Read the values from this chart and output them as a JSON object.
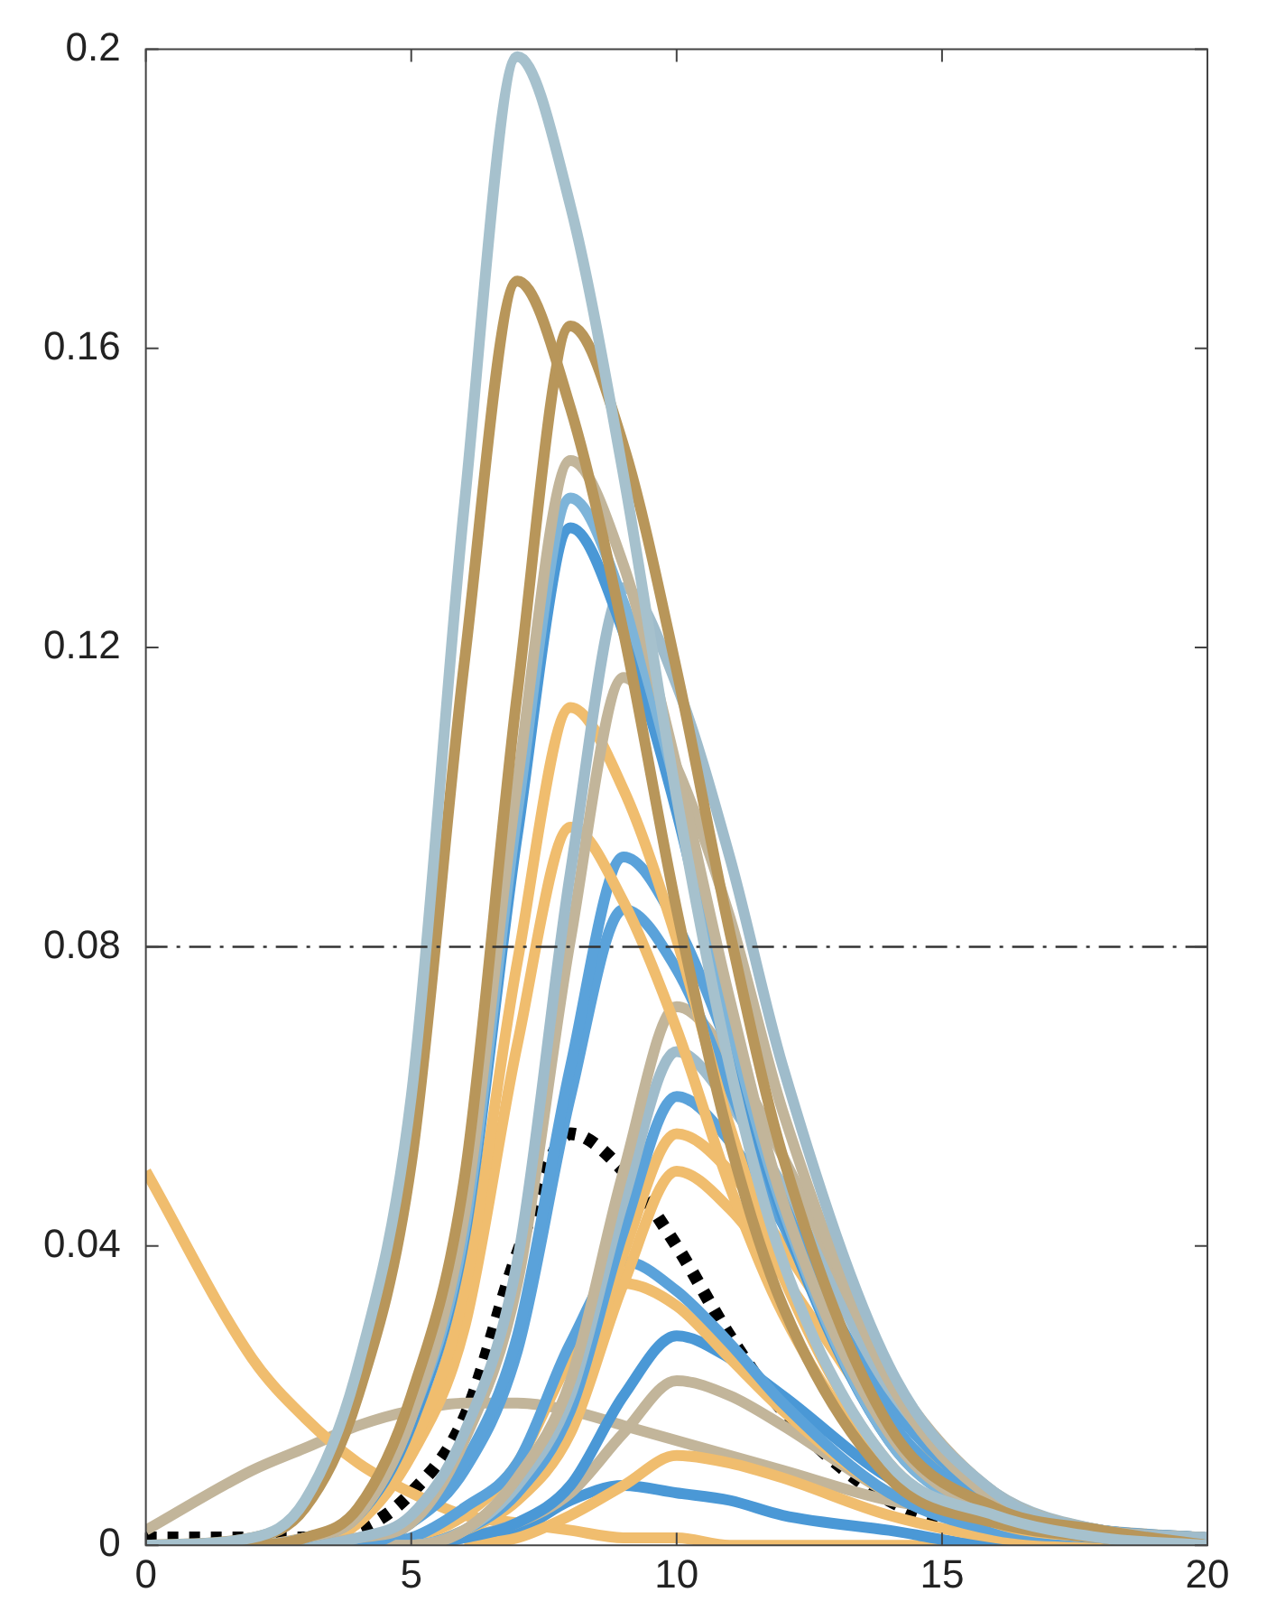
{
  "chart_data": {
    "type": "line",
    "x": [
      0,
      2,
      3,
      4,
      5,
      6,
      7,
      8,
      9,
      10,
      11,
      12,
      14,
      16,
      18,
      20
    ],
    "xlim": [
      0,
      20
    ],
    "xticks": [
      0,
      5,
      10,
      15,
      20
    ],
    "ylim": [
      0,
      0.2
    ],
    "yticks": [
      0,
      0.04,
      0.08,
      0.12,
      0.16,
      0.2
    ],
    "grid": false,
    "legend": false,
    "marker": "none",
    "line_style": "solid",
    "ref_lines": [
      {
        "axis": "y",
        "value": 0.08,
        "color": "#333333",
        "line_style": "dashdot"
      }
    ],
    "series": [
      {
        "color": "#a6c1cd",
        "values": [
          0,
          0.001,
          0.006,
          0.024,
          0.06,
          0.139,
          0.199,
          0.179,
          0.143,
          0.1,
          0.064,
          0.038,
          0.011,
          0.004,
          0.001,
          0
        ]
      },
      {
        "color": "#b8965a",
        "values": [
          0,
          0.001,
          0.005,
          0.02,
          0.051,
          0.118,
          0.169,
          0.152,
          0.122,
          0.085,
          0.054,
          0.032,
          0.009,
          0.003,
          0.001,
          0
        ]
      },
      {
        "color": "#b8965a",
        "values": [
          0,
          0,
          0.001,
          0.005,
          0.02,
          0.049,
          0.114,
          0.163,
          0.147,
          0.117,
          0.082,
          0.052,
          0.016,
          0.005,
          0.002,
          0
        ]
      },
      {
        "color": "#c2b59a",
        "values": [
          0,
          0,
          0.001,
          0.004,
          0.017,
          0.044,
          0.102,
          0.145,
          0.131,
          0.104,
          0.073,
          0.046,
          0.015,
          0.004,
          0.001,
          0
        ]
      },
      {
        "color": "#7db4d9",
        "values": [
          0,
          0,
          0.001,
          0.004,
          0.017,
          0.042,
          0.098,
          0.14,
          0.126,
          0.101,
          0.07,
          0.045,
          0.014,
          0.004,
          0.001,
          0
        ]
      },
      {
        "color": "#4a98d6",
        "values": [
          0,
          0,
          0.001,
          0.004,
          0.016,
          0.041,
          0.095,
          0.136,
          0.122,
          0.098,
          0.068,
          0.044,
          0.014,
          0.004,
          0.001,
          0
        ]
      },
      {
        "color": "#9fbccb",
        "values": [
          0,
          0,
          0,
          0.001,
          0.004,
          0.015,
          0.038,
          0.09,
          0.128,
          0.115,
          0.092,
          0.064,
          0.024,
          0.007,
          0.002,
          0.001
        ]
      },
      {
        "color": "#c2b59a",
        "values": [
          0,
          0,
          0,
          0.001,
          0.003,
          0.014,
          0.035,
          0.081,
          0.116,
          0.104,
          0.084,
          0.058,
          0.022,
          0.006,
          0.002,
          0.001
        ]
      },
      {
        "color": "#f0bd6e",
        "values": [
          0,
          0,
          0.001,
          0.003,
          0.013,
          0.034,
          0.078,
          0.112,
          0.101,
          0.081,
          0.056,
          0.036,
          0.011,
          0.003,
          0.001,
          0
        ]
      },
      {
        "color": "#f0bd6e",
        "values": [
          0,
          0,
          0,
          0.003,
          0.012,
          0.029,
          0.067,
          0.096,
          0.086,
          0.069,
          0.048,
          0.031,
          0.01,
          0.003,
          0.001,
          0
        ]
      },
      {
        "color": "#5aa2da",
        "values": [
          0,
          0,
          0,
          0,
          0.003,
          0.011,
          0.028,
          0.064,
          0.092,
          0.083,
          0.066,
          0.046,
          0.017,
          0.005,
          0.002,
          0.001
        ]
      },
      {
        "color": "#5aa2da",
        "values": [
          0,
          0,
          0,
          0,
          0.003,
          0.01,
          0.026,
          0.06,
          0.085,
          0.077,
          0.061,
          0.043,
          0.016,
          0.005,
          0.002,
          0.001
        ]
      },
      {
        "color": "#c2b59a",
        "values": [
          0,
          0,
          0,
          0,
          0,
          0.002,
          0.009,
          0.022,
          0.05,
          0.072,
          0.065,
          0.052,
          0.023,
          0.007,
          0.002,
          0.001
        ]
      },
      {
        "color": "#9fbccb",
        "values": [
          0,
          0,
          0,
          0,
          0,
          0.002,
          0.008,
          0.02,
          0.046,
          0.066,
          0.059,
          0.048,
          0.021,
          0.007,
          0.002,
          0.001
        ]
      },
      {
        "color": "#5aa2da",
        "values": [
          0,
          0,
          0,
          0,
          0,
          0.002,
          0.007,
          0.018,
          0.042,
          0.06,
          0.054,
          0.043,
          0.019,
          0.006,
          0.002,
          0.001
        ]
      },
      {
        "color": "#f0bd6e",
        "values": [
          0,
          0,
          0,
          0,
          0,
          0.002,
          0.007,
          0.017,
          0.039,
          0.055,
          0.05,
          0.04,
          0.018,
          null,
          null,
          null
        ]
      },
      {
        "color": "#f0bd6e",
        "values": [
          0,
          0,
          0,
          0,
          0,
          0.002,
          0.006,
          0.015,
          0.035,
          0.05,
          0.045,
          0.036,
          0.016,
          0.005,
          null,
          null
        ]
      },
      {
        "color": "#5aa2da",
        "values": [
          0,
          0,
          0,
          0,
          0.001,
          0.005,
          0.011,
          0.027,
          0.038,
          0.034,
          0.027,
          0.019,
          0.007,
          0.002,
          0.001,
          0
        ]
      },
      {
        "color": "#f0bd6e",
        "values": [
          null,
          null,
          0,
          0,
          0.001,
          0.004,
          0.011,
          0.025,
          0.035,
          0.032,
          0.025,
          0.018,
          0.007,
          0.002,
          0.001,
          0
        ]
      },
      {
        "color": "#4a98d6",
        "values": [
          null,
          null,
          null,
          0,
          0,
          0.001,
          0.003,
          0.008,
          0.02,
          0.028,
          0.025,
          0.02,
          0.009,
          0.003,
          0.001,
          0
        ]
      },
      {
        "color": "#c2b59a",
        "values": [
          null,
          null,
          null,
          null,
          0,
          0.001,
          0.003,
          0.007,
          0.015,
          0.022,
          0.02,
          0.016,
          0.007,
          0.002,
          0.001,
          0
        ]
      },
      {
        "color": "#f0bd6e",
        "values": [
          null,
          null,
          null,
          null,
          null,
          0,
          0.001,
          0.004,
          0.008,
          0.012,
          0.011,
          0.009,
          0.004,
          0.001,
          0,
          0
        ]
      },
      {
        "color": "#4a98d6",
        "values": [
          null,
          null,
          0,
          0,
          0,
          0.001,
          0.002,
          0.006,
          0.008,
          0.007,
          0.006,
          0.004,
          0.002,
          0,
          0,
          null
        ]
      },
      {
        "color": "#f0bd6e",
        "values": [
          0.05,
          0.025,
          0.017,
          0.011,
          0.007,
          0.004,
          0.003,
          0.002,
          0.001,
          0.001,
          0,
          0,
          0,
          0,
          0,
          0
        ]
      },
      {
        "color": "#c2b59a",
        "values": [
          0.002,
          0.01,
          0.013,
          0.016,
          0.018,
          0.019,
          0.019,
          0.018,
          0.016,
          0.014,
          0.012,
          0.01,
          0.006,
          0.004,
          0.002,
          0.001
        ]
      },
      {
        "color": "#000000",
        "line_style": "dotted",
        "values": [
          0.001,
          0.001,
          0.001,
          0.002,
          0.007,
          0.017,
          0.039,
          0.055,
          0.05,
          0.04,
          0.028,
          0.018,
          0.006,
          0.002,
          0.001,
          0.001
        ]
      }
    ]
  }
}
